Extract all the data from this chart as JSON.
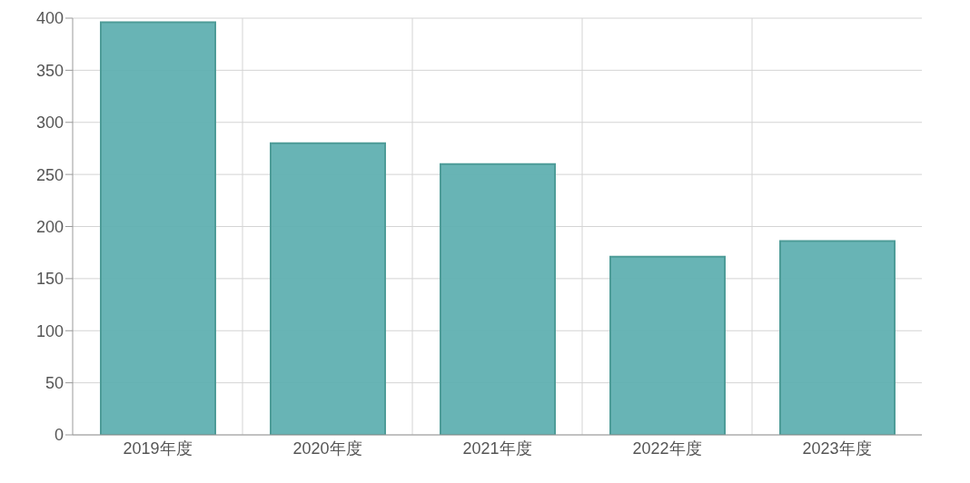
{
  "chart_data": {
    "type": "bar",
    "categories": [
      "2019年度",
      "2020年度",
      "2021年度",
      "2022年度",
      "2023年度"
    ],
    "values": [
      396,
      280,
      260,
      171,
      186
    ],
    "color": "#60b0b1",
    "ylim": [
      0,
      400
    ],
    "yticks": [
      0,
      50,
      100,
      150,
      200,
      250,
      300,
      350,
      400
    ],
    "grid": true
  }
}
